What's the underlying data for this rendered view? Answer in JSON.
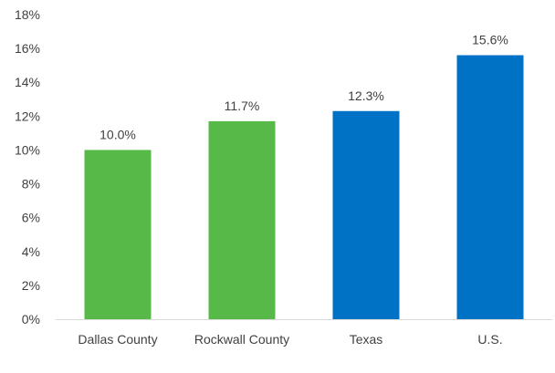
{
  "chart_data": {
    "type": "bar",
    "title": "",
    "xlabel": "",
    "ylabel": "",
    "categories": [
      "Dallas County",
      "Rockwall County",
      "Texas",
      "U.S."
    ],
    "values": [
      10.0,
      11.7,
      12.3,
      15.6
    ],
    "value_labels": [
      "10.0%",
      "11.7%",
      "12.3%",
      "15.6%"
    ],
    "bar_colors": [
      "#57b947",
      "#57b947",
      "#0072c6",
      "#0072c6"
    ],
    "ylim": [
      0,
      18
    ],
    "yticks": [
      0,
      2,
      4,
      6,
      8,
      10,
      12,
      14,
      16,
      18
    ],
    "ytick_labels": [
      "0%",
      "2%",
      "4%",
      "6%",
      "8%",
      "10%",
      "12%",
      "14%",
      "16%",
      "18%"
    ],
    "grid": false,
    "legend": "none"
  }
}
